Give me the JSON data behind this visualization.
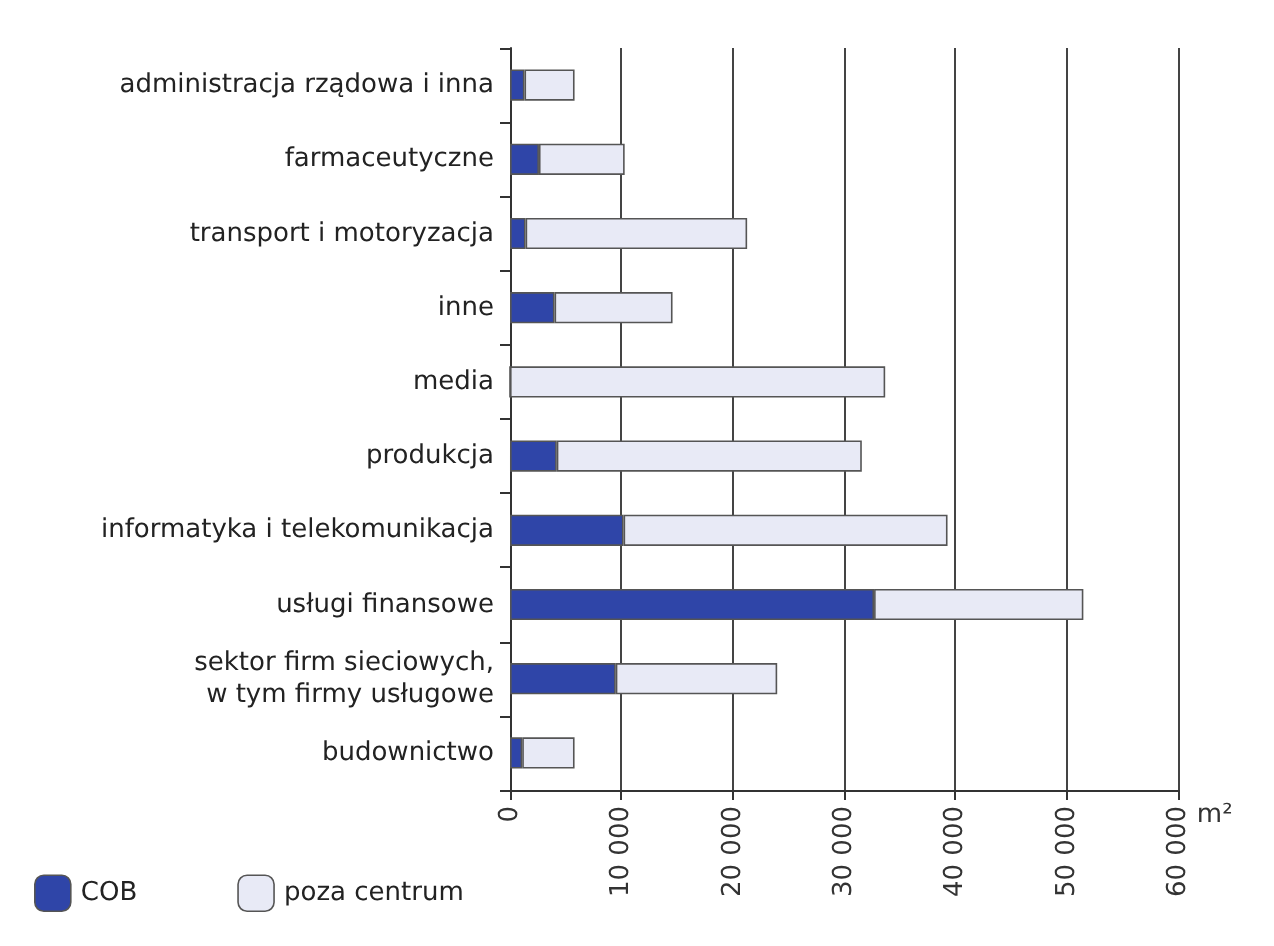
{
  "chart_data": {
    "type": "bar",
    "orientation": "horizontal",
    "stacked": true,
    "xlabel": "m²",
    "categories": [
      "administracja rządowa i inna",
      "farmaceutyczne",
      "transport i motoryzacja",
      "inne",
      "media",
      "produkcja",
      "informatyka i telekomunikacja",
      "usługi finansowe",
      "sektor firm sieciowych,\nw tym firmy usługowe",
      "budownictwo"
    ],
    "series": [
      {
        "name": "COB",
        "color": "#2f45a8",
        "values": [
          1300,
          2600,
          1400,
          4000,
          0,
          4200,
          10200,
          32700,
          9500,
          1100
        ]
      },
      {
        "name": "poza centrum",
        "color": "#e8eaf6",
        "values": [
          4500,
          7700,
          19900,
          10600,
          33700,
          27400,
          29100,
          18800,
          14500,
          4700
        ]
      }
    ],
    "xlim": [
      0,
      60000
    ],
    "xticks": [
      0,
      {
        "value": 10000,
        "label": "10 000"
      },
      {
        "value": 20000,
        "label": "20 000"
      },
      {
        "value": 30000,
        "label": "30 000"
      },
      {
        "value": 40000,
        "label": "40 000"
      },
      {
        "value": 50000,
        "label": "50 000"
      },
      {
        "value": 60000,
        "label": "60 000"
      }
    ],
    "grid": "x",
    "legend": "bottom left"
  }
}
